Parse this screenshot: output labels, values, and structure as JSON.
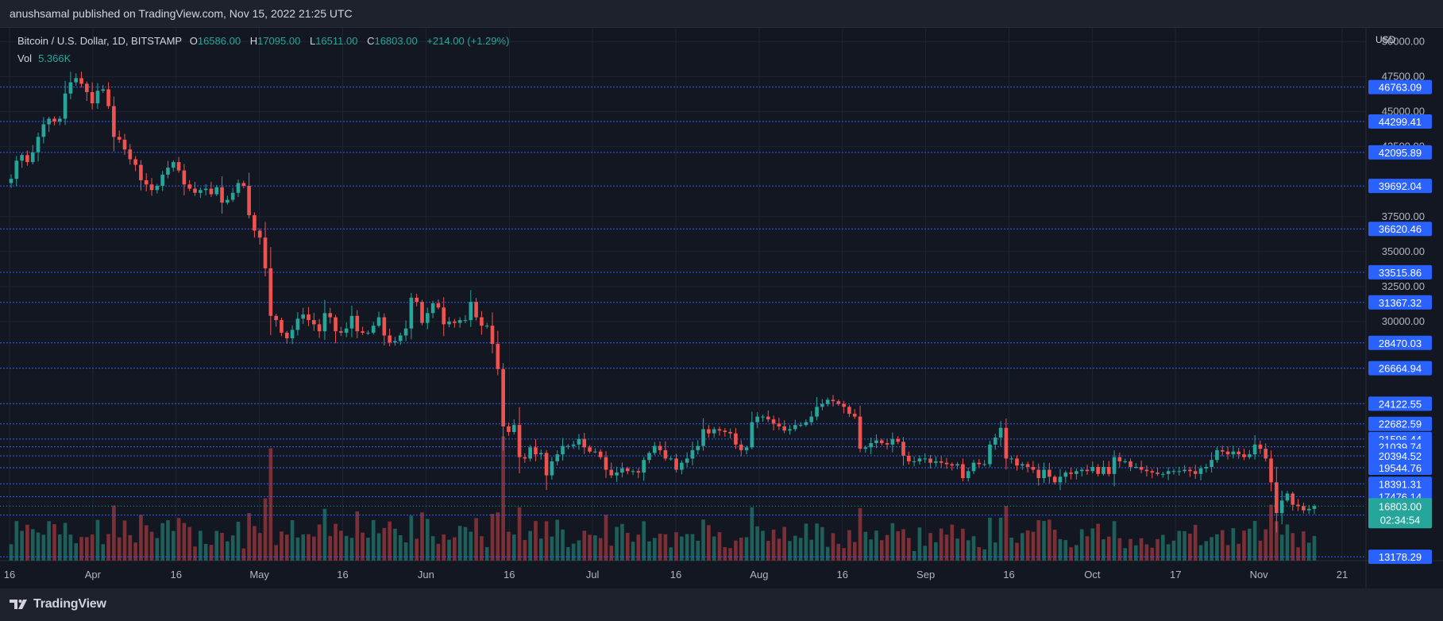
{
  "header": {
    "publisher": "anushsamal published on TradingView.com, Nov 15, 2022 21:25 UTC"
  },
  "legend": {
    "symbol": "Bitcoin / U.S. Dollar, 1D, BITSTAMP",
    "open_label": "O",
    "open": "16586.00",
    "high_label": "H",
    "high": "17095.00",
    "low_label": "L",
    "low": "16511.00",
    "close_label": "C",
    "close": "16803.00",
    "change": "+214.00 (+1.29%)",
    "volume_label": "Vol",
    "volume": "5.366K"
  },
  "price_axis": {
    "currency": "USD"
  },
  "footer": {
    "brand": "TradingView"
  },
  "colors": {
    "up": "#26a69a",
    "down": "#ef5350",
    "vol_up": "#1e5f5a",
    "vol_down": "#7d2f36",
    "level_line": "#2962ff",
    "label_bg": "#2962ff",
    "current_bg": "#26a69a",
    "background": "#131722",
    "grid": "#1f2431"
  },
  "chart_data": {
    "type": "candlestick",
    "instrument": "Bitcoin / U.S. Dollar",
    "interval": "1D",
    "exchange": "BITSTAMP",
    "ylim": [
      12900,
      51000
    ],
    "y_ticks": [
      50000,
      47500,
      45000,
      42500,
      37500,
      35000,
      32500,
      30000
    ],
    "x_ticks": [
      "16",
      "Apr",
      "16",
      "May",
      "16",
      "Jun",
      "16",
      "Jul",
      "16",
      "Aug",
      "16",
      "Sep",
      "16",
      "Oct",
      "17",
      "Nov",
      "21"
    ],
    "levels": [
      46763.09,
      44299.41,
      42095.89,
      39692.04,
      36620.46,
      33515.86,
      31367.32,
      28470.03,
      26664.94,
      24122.55,
      22682.59,
      21596.44,
      21039.74,
      20394.52,
      19544.76,
      18391.31,
      17476.14,
      16159.18,
      13178.29
    ],
    "current_price": 16803.0,
    "countdown": "02:34:54",
    "closes": [
      40200,
      41500,
      41900,
      41400,
      42100,
      43200,
      44100,
      44500,
      44300,
      44500,
      46300,
      47100,
      47400,
      47000,
      46400,
      45600,
      46500,
      46600,
      45400,
      43200,
      43000,
      42300,
      41600,
      41200,
      40100,
      39800,
      39400,
      39700,
      40500,
      41000,
      41400,
      40800,
      39800,
      39500,
      39200,
      39400,
      39500,
      39100,
      39600,
      38500,
      38700,
      39200,
      39900,
      39700,
      37600,
      36500,
      36000,
      33800,
      30400,
      30100,
      29200,
      28800,
      29400,
      30200,
      30500,
      30100,
      29800,
      29300,
      30600,
      30300,
      29300,
      29200,
      29500,
      30400,
      29300,
      29200,
      29200,
      29700,
      30300,
      29000,
      28500,
      28600,
      29000,
      29500,
      31700,
      31400,
      29900,
      30600,
      31300,
      31000,
      29800,
      30000,
      29900,
      30100,
      30100,
      31400,
      30300,
      29700,
      29700,
      28400,
      26600,
      22500,
      22100,
      22600,
      20300,
      20200,
      21000,
      20500,
      20600,
      19000,
      20000,
      20500,
      21100,
      21100,
      21200,
      21600,
      21000,
      20700,
      20700,
      20300,
      19400,
      19000,
      19200,
      19500,
      19300,
      19300,
      19200,
      20100,
      20600,
      21100,
      20800,
      20200,
      20200,
      19400,
      19900,
      20200,
      20800,
      21100,
      22300,
      22000,
      22300,
      22200,
      22100,
      22000,
      21200,
      20800,
      21000,
      22800,
      23200,
      23200,
      23000,
      22700,
      22500,
      22200,
      22300,
      22600,
      22600,
      22800,
      23200,
      23900,
      24100,
      24400,
      24300,
      24100,
      23900,
      23400,
      23200,
      20900,
      21000,
      21300,
      21500,
      21300,
      21200,
      21600,
      21400,
      20400,
      20000,
      20000,
      20200,
      20200,
      19900,
      20000,
      19900,
      19800,
      19700,
      19800,
      18800,
      19300,
      19900,
      19800,
      19800,
      21200,
      21700,
      22400,
      20200,
      20200,
      19700,
      19800,
      19600,
      19400,
      18800,
      19400,
      18900,
      18500,
      18900,
      19200,
      19100,
      19300,
      19400,
      19300,
      19600,
      19100,
      19600,
      19100,
      20300,
      20000,
      20000,
      19600,
      19600,
      19400,
      19300,
      19200,
      19100,
      19100,
      19300,
      19300,
      19300,
      19400,
      19300,
      19100,
      19500,
      19600,
      20100,
      20800,
      20700,
      20500,
      20700,
      20500,
      20300,
      20500,
      21200,
      20900,
      20200,
      18500,
      16300,
      17200,
      17700,
      16900,
      16800,
      16500,
      16600,
      16800
    ]
  }
}
